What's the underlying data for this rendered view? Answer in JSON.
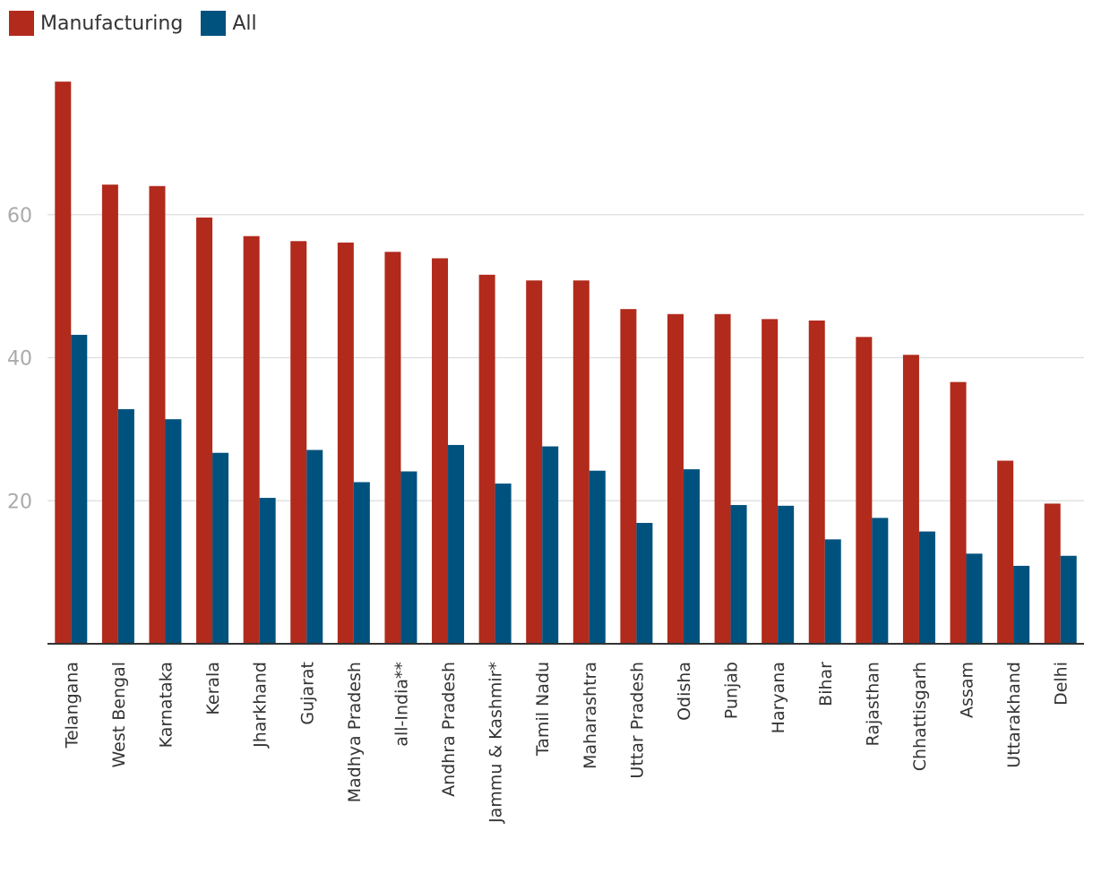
{
  "chart_data": {
    "type": "bar",
    "title": "",
    "xlabel": "",
    "ylabel": "",
    "ylim": [
      0,
      80
    ],
    "yticks": [
      20,
      40,
      60
    ],
    "grid": true,
    "legend_position": "top-left",
    "categories": [
      "Telangana",
      "West Bengal",
      "Karnataka",
      "Kerala",
      "Jharkhand",
      "Gujarat",
      "Madhya Pradesh",
      "all-India**",
      "Andhra Pradesh",
      "Jammu & Kashmir*",
      "Tamil Nadu",
      "Maharashtra",
      "Uttar Pradesh",
      "Odisha",
      "Punjab",
      "Haryana",
      "Bihar",
      "Rajasthan",
      "Chhattisgarh",
      "Assam",
      "Uttarakhand",
      "Delhi"
    ],
    "series": [
      {
        "name": "Manufacturing",
        "color": "#b12a1c",
        "values": [
          78.6,
          64.2,
          64.0,
          59.6,
          57.0,
          56.3,
          56.1,
          54.8,
          53.9,
          51.6,
          50.8,
          50.8,
          46.8,
          46.1,
          46.1,
          45.4,
          45.2,
          42.9,
          40.4,
          36.6,
          25.6,
          19.6
        ]
      },
      {
        "name": "All",
        "color": "#00527e",
        "values": [
          43.2,
          32.8,
          31.4,
          26.7,
          20.4,
          27.1,
          22.6,
          24.1,
          27.8,
          22.4,
          27.6,
          24.2,
          16.9,
          24.4,
          19.4,
          19.3,
          14.6,
          17.6,
          15.7,
          12.6,
          10.9,
          12.3
        ]
      }
    ]
  }
}
